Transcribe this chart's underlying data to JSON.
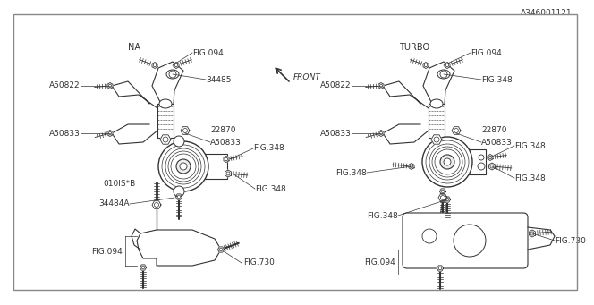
{
  "background": "#ffffff",
  "line_color": "#333333",
  "text_color": "#333333",
  "font_size": 6.5,
  "diagram_id": "A346001121",
  "label_fs": 6.5
}
